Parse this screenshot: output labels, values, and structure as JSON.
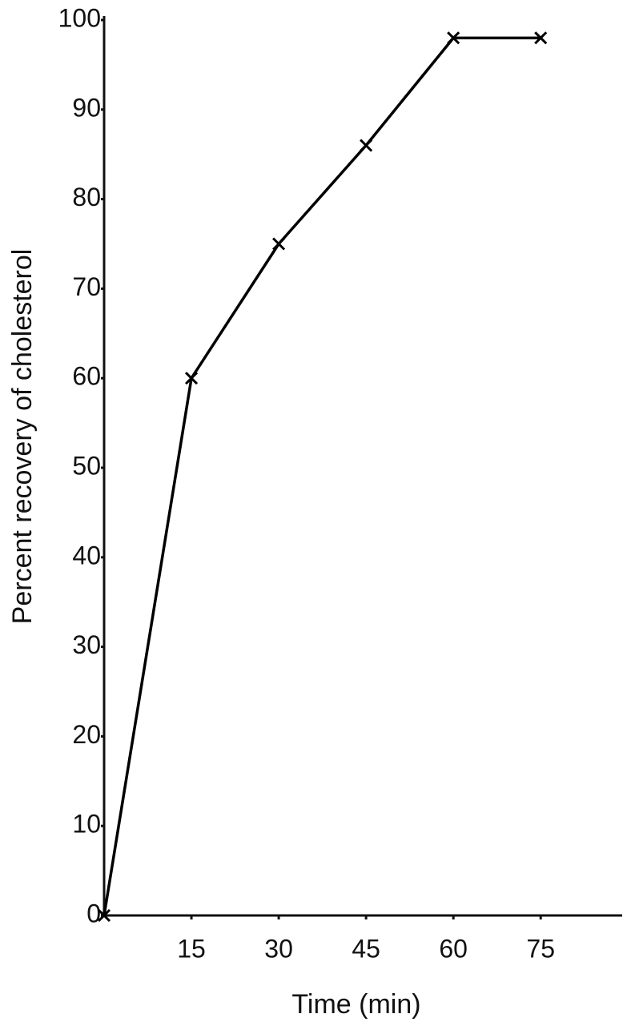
{
  "chart_data": {
    "type": "line",
    "x_label": "Time (min)",
    "y_label": "Percent recovery of cholesterol",
    "x": [
      0,
      15,
      30,
      45,
      60,
      75
    ],
    "series": [
      {
        "color": "#000000",
        "values": [
          0,
          60,
          75,
          86,
          98,
          98
        ]
      }
    ],
    "xlim": [
      0,
      89
    ],
    "ylim": [
      0,
      100
    ],
    "xticks": [
      15,
      30,
      45,
      60,
      75
    ],
    "yticks": [
      0,
      10,
      20,
      30,
      40,
      50,
      60,
      70,
      80,
      90,
      100
    ],
    "grid": false
  }
}
